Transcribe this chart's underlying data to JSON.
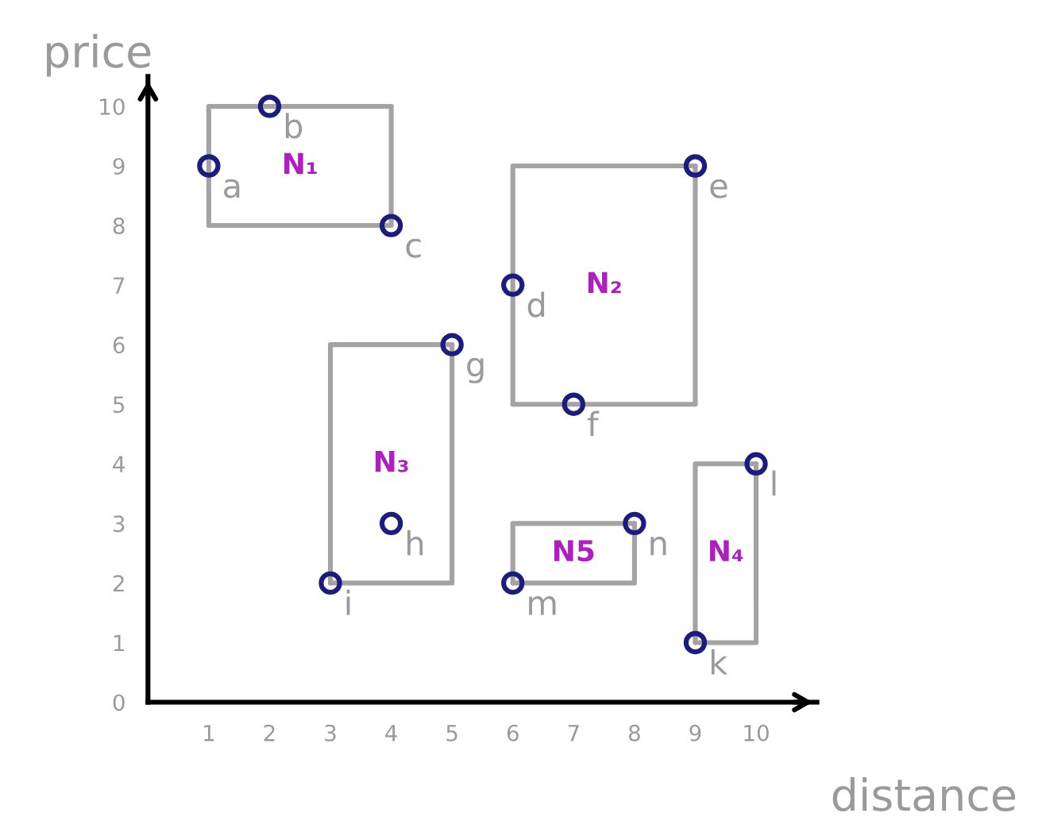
{
  "chart_data": {
    "type": "scatter",
    "xlabel": "distance",
    "ylabel": "price",
    "xlim": [
      0,
      11
    ],
    "ylim": [
      0,
      10.5
    ],
    "xticks": [
      1,
      2,
      3,
      4,
      5,
      6,
      7,
      8,
      9,
      10
    ],
    "yticks": [
      0,
      1,
      2,
      3,
      4,
      5,
      6,
      7,
      8,
      9,
      10
    ],
    "marker": "circle",
    "grid": false,
    "legend": false,
    "series": [
      {
        "color": "#1c1c80",
        "x": [
          1,
          2,
          4,
          6,
          9,
          7,
          5,
          4,
          3,
          6,
          8,
          10,
          9
        ],
        "values": [
          9,
          10,
          8,
          7,
          9,
          5,
          6,
          3,
          2,
          2,
          3,
          4,
          1
        ]
      },
      {
        "type": "line",
        "marker": "none",
        "color": "#a3a3a3",
        "x": [
          1,
          1,
          4
        ],
        "values": [
          8,
          10,
          10
        ]
      },
      {
        "type": "line",
        "marker": "none",
        "name": "N₁",
        "color": "#a3a3a3",
        "x": [
          1,
          4,
          4
        ],
        "values": [
          8,
          8,
          10
        ]
      },
      {
        "type": "line",
        "marker": "none",
        "color": "#a3a3a3",
        "x": [
          6,
          6,
          9
        ],
        "values": [
          5,
          9,
          9
        ]
      },
      {
        "type": "line",
        "marker": "none",
        "name": "N₂",
        "color": "#a3a3a3",
        "x": [
          6,
          9,
          9
        ],
        "values": [
          5,
          5,
          9
        ]
      },
      {
        "type": "line",
        "marker": "none",
        "color": "#a3a3a3",
        "x": [
          3,
          3,
          5
        ],
        "values": [
          2,
          6,
          6
        ]
      },
      {
        "type": "line",
        "marker": "none",
        "name": "N₃",
        "color": "#a3a3a3",
        "x": [
          3,
          5,
          5
        ],
        "values": [
          2,
          2,
          6
        ]
      },
      {
        "type": "line",
        "marker": "none",
        "color": "#a3a3a3",
        "x": [
          9,
          9,
          10
        ],
        "values": [
          1,
          4,
          4
        ]
      },
      {
        "type": "line",
        "marker": "none",
        "name": "N₄",
        "color": "#a3a3a3",
        "x": [
          9,
          10,
          10
        ],
        "values": [
          1,
          1,
          4
        ]
      },
      {
        "type": "line",
        "marker": "none",
        "color": "#a3a3a3",
        "x": [
          6,
          6,
          8
        ],
        "values": [
          2,
          3,
          3
        ]
      },
      {
        "type": "line",
        "marker": "none",
        "name": "N5",
        "color": "#a3a3a3",
        "x": [
          6,
          8,
          8
        ],
        "values": [
          2,
          2,
          3
        ]
      }
    ],
    "annotations": [
      {
        "text": "a",
        "x": 1,
        "y": 9
      },
      {
        "text": "b",
        "x": 2,
        "y": 10
      },
      {
        "text": "c",
        "x": 4,
        "y": 8
      },
      {
        "text": "d",
        "x": 6,
        "y": 7
      },
      {
        "text": "e",
        "x": 9,
        "y": 9
      },
      {
        "text": "f",
        "x": 7,
        "y": 5
      },
      {
        "text": "g",
        "x": 5,
        "y": 6
      },
      {
        "text": "h",
        "x": 4,
        "y": 3
      },
      {
        "text": "i",
        "x": 3,
        "y": 2
      },
      {
        "text": "m",
        "x": 6,
        "y": 2
      },
      {
        "text": "n",
        "x": 8,
        "y": 3
      },
      {
        "text": "l",
        "x": 10,
        "y": 4
      },
      {
        "text": "k",
        "x": 9,
        "y": 1
      }
    ]
  }
}
